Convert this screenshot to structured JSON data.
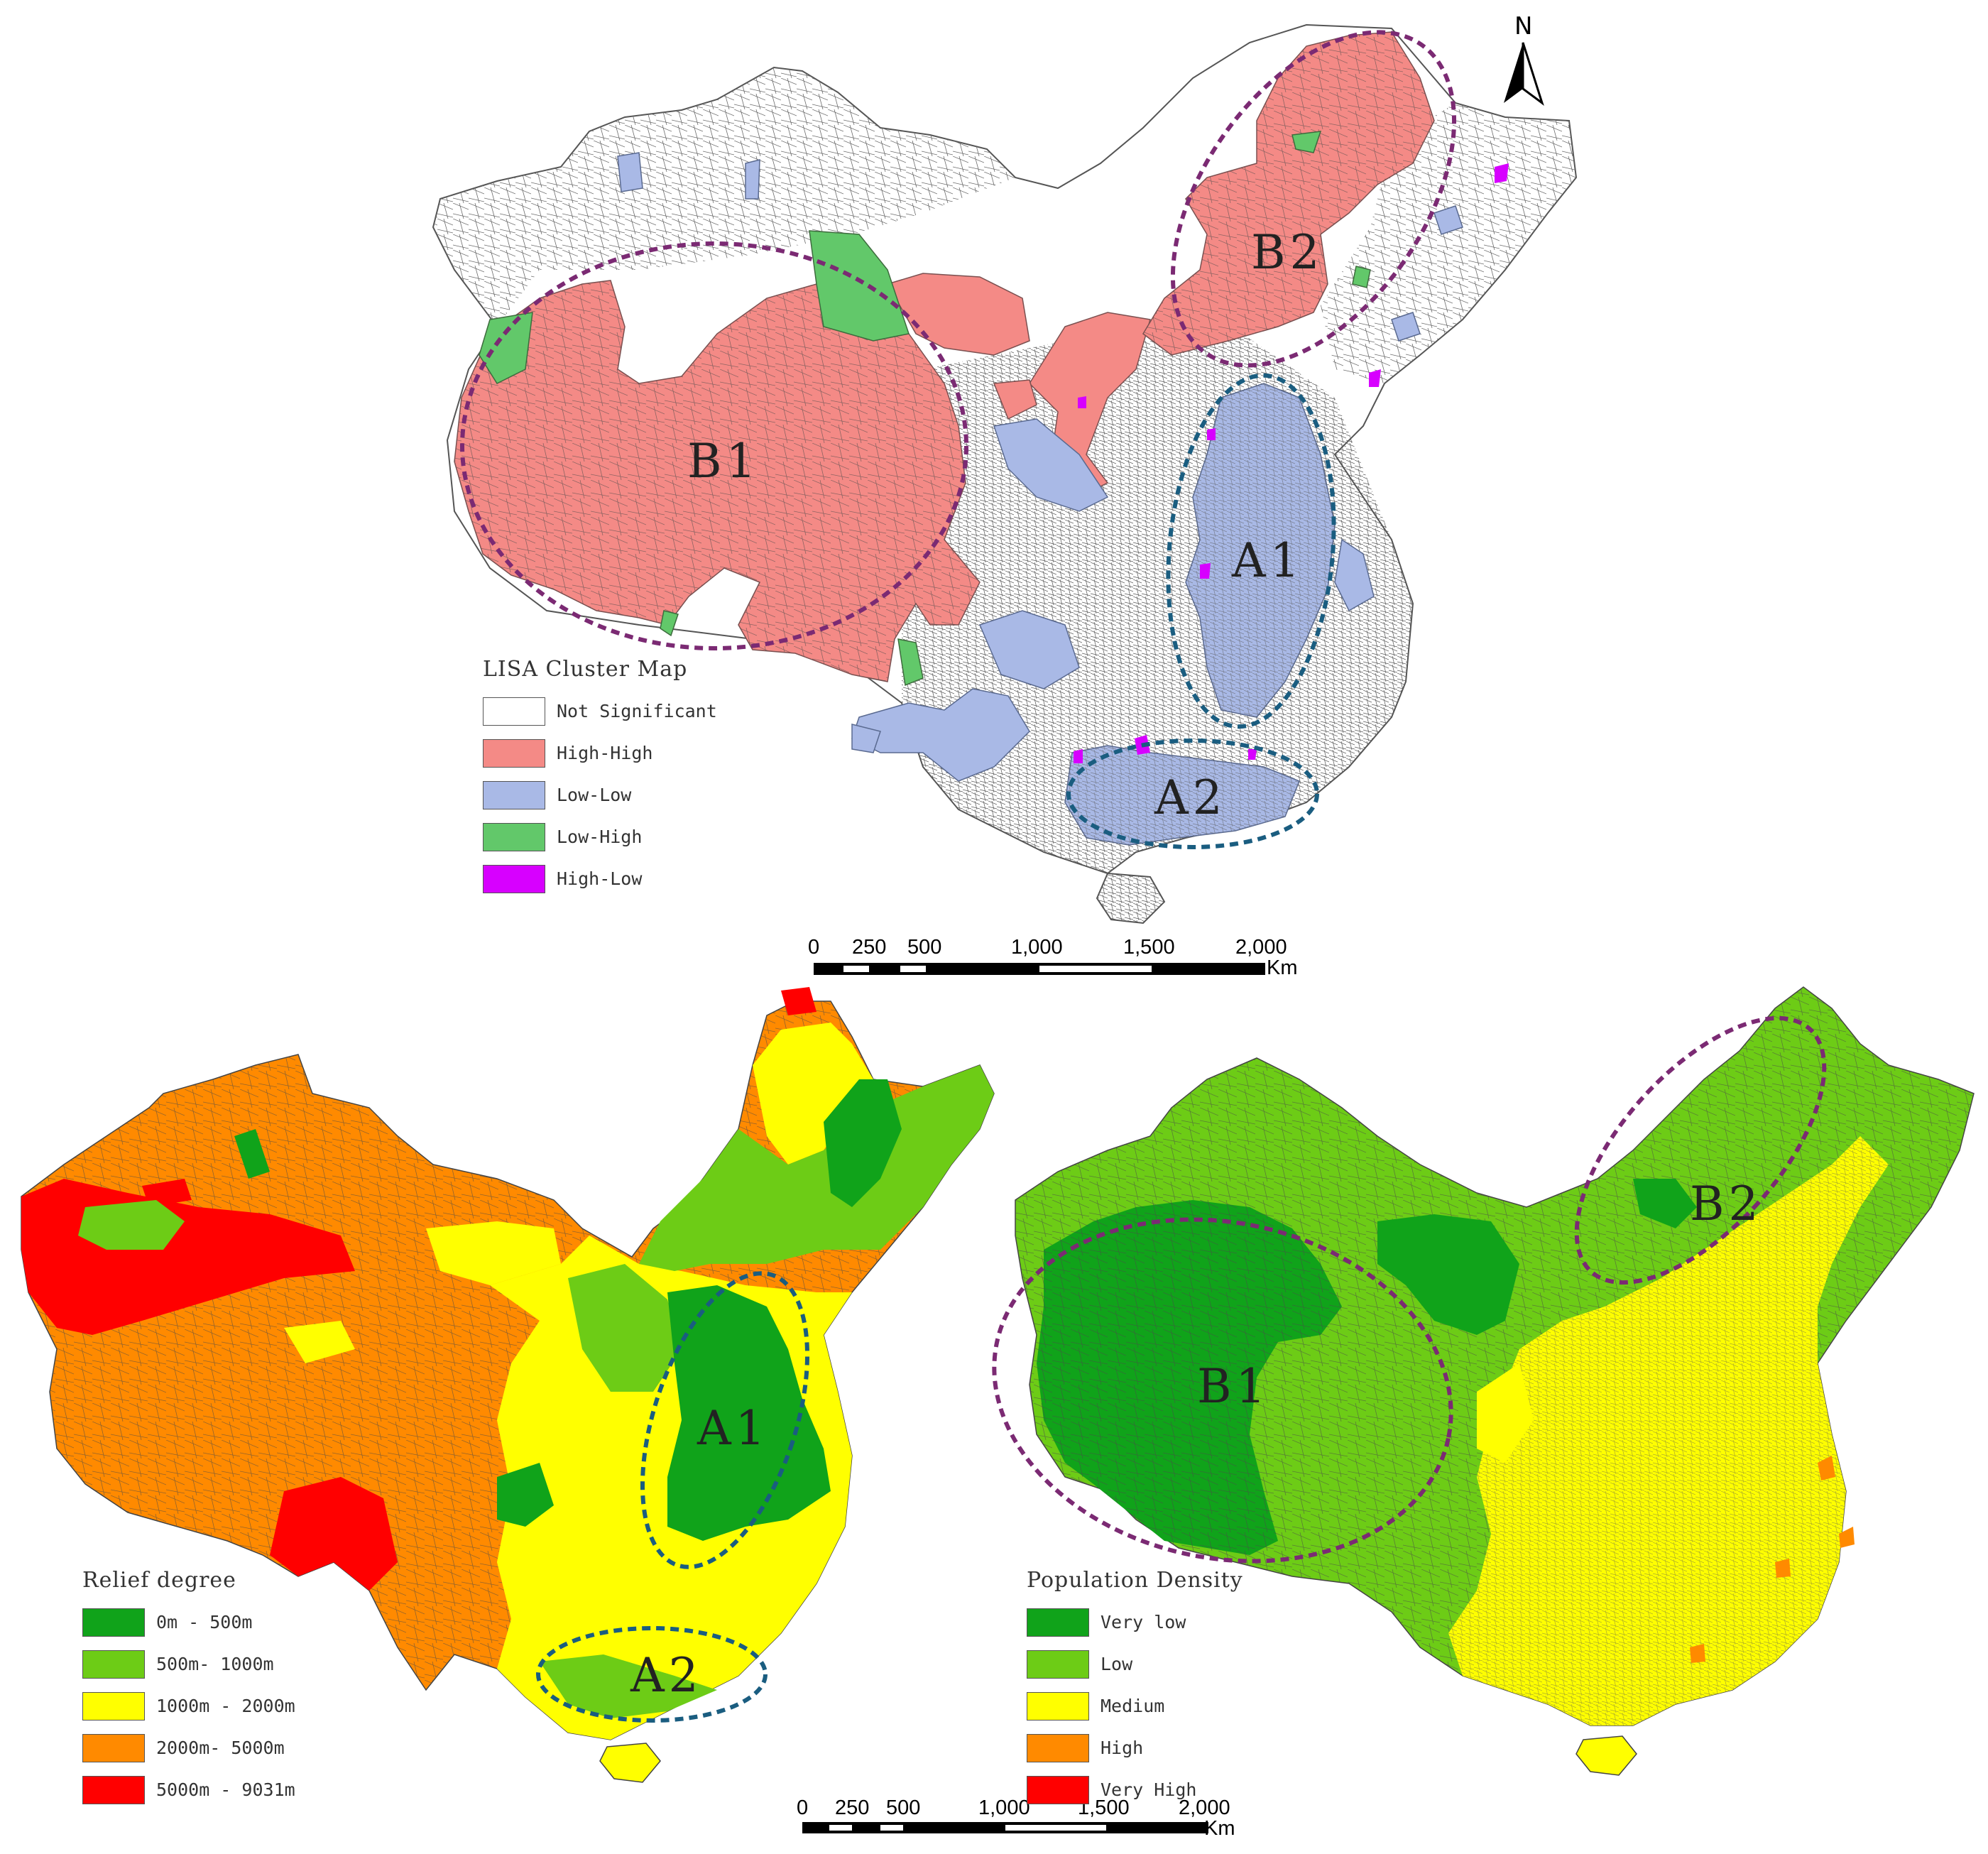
{
  "maps": {
    "lisa": {
      "legend_title": "LISA Cluster Map",
      "legend": [
        {
          "label": "Not Significant",
          "color": "#ffffff"
        },
        {
          "label": "High-High",
          "color": "#f48a86"
        },
        {
          "label": "Low-Low",
          "color": "#a9b9e6"
        },
        {
          "label": "Low-High",
          "color": "#62c86a"
        },
        {
          "label": "High-Low",
          "color": "#d700ff"
        }
      ],
      "region_labels": [
        "B1",
        "B2",
        "A1",
        "A2"
      ]
    },
    "relief": {
      "legend_title": "Relief degree",
      "legend": [
        {
          "label": "0m - 500m",
          "color": "#10a31a"
        },
        {
          "label": "500m- 1000m",
          "color": "#6dcc16"
        },
        {
          "label": "1000m - 2000m",
          "color": "#ffff00"
        },
        {
          "label": "2000m- 5000m",
          "color": "#ff8a00"
        },
        {
          "label": "5000m - 9031m",
          "color": "#ff0000"
        }
      ],
      "region_labels": [
        "A1",
        "A2"
      ]
    },
    "population": {
      "legend_title": "Population Density",
      "legend": [
        {
          "label": "Very low",
          "color": "#10a31a"
        },
        {
          "label": "Low",
          "color": "#6dcc16"
        },
        {
          "label": "Medium",
          "color": "#ffff00"
        },
        {
          "label": "High",
          "color": "#ff8a00"
        },
        {
          "label": "Very High",
          "color": "#ff0000"
        }
      ],
      "region_labels": [
        "B1",
        "B2"
      ]
    }
  },
  "north_arrow": {
    "label": "N"
  },
  "scale_bars": [
    {
      "ticks": [
        "0",
        "250",
        "500",
        "1,000",
        "1,500",
        "2,000"
      ],
      "unit": "Km"
    },
    {
      "ticks": [
        "0",
        "250",
        "500",
        "1,000",
        "1,500",
        "2,000"
      ],
      "unit": "Km"
    }
  ],
  "colors": {
    "cluster_ellipse_b": "#7b2a73",
    "cluster_ellipse_a": "#1a5d80"
  }
}
